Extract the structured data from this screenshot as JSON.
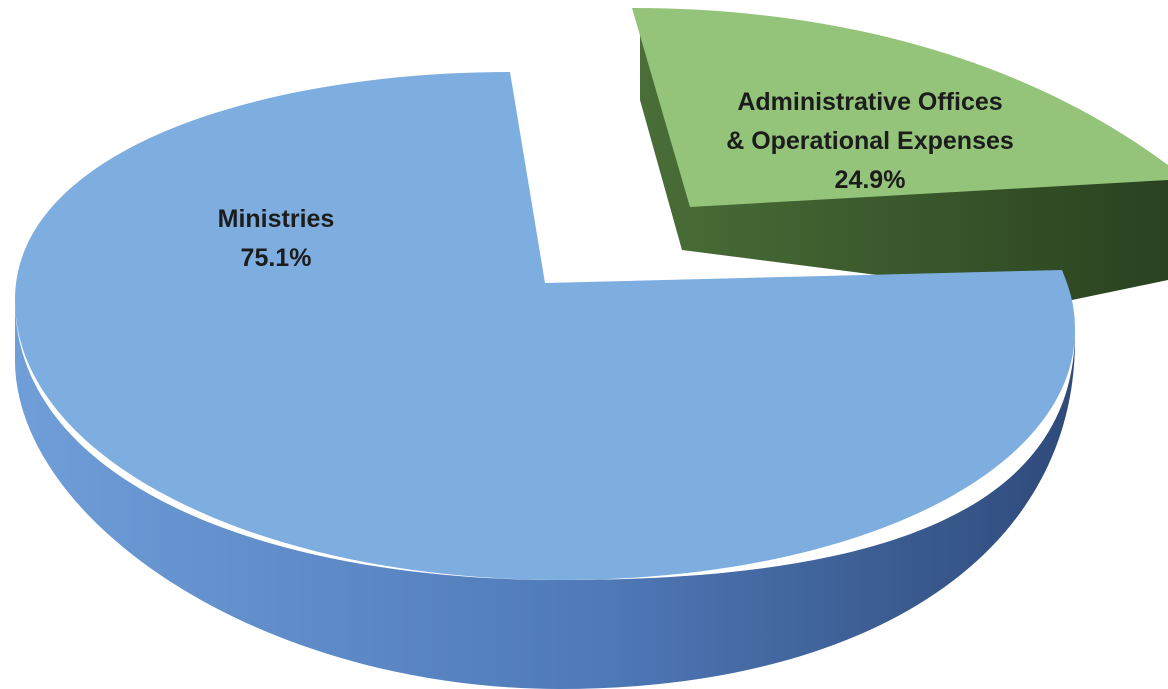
{
  "chart_data": {
    "type": "pie",
    "style": "3d-exploded",
    "slices": [
      {
        "name": "Ministries",
        "value": 75.1,
        "value_label": "75.1%",
        "color": "#7eaee0",
        "side_color": "#4f79b8"
      },
      {
        "name_lines": [
          "Administrative Offices",
          "& Operational Expenses"
        ],
        "value": 24.9,
        "value_label": "24.9%",
        "color": "#93c47a",
        "side_color": "#3a5a2c"
      }
    ]
  }
}
